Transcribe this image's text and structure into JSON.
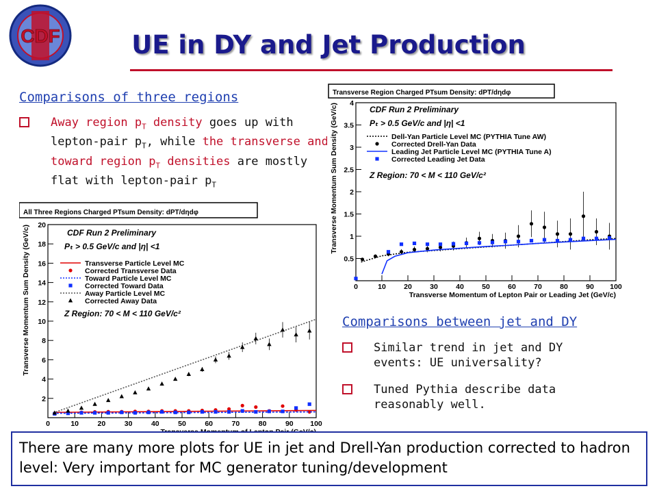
{
  "logo": {
    "text": "CDF"
  },
  "title": "UE in DY and Jet Production",
  "left_section": {
    "heading": "Comparisons of three regions",
    "bullet": {
      "p1": "Away region p",
      "sub1": "T",
      "p2": " density",
      "p3": " goes up with lepton-pair p",
      "sub2": "T",
      "p4": ", while ",
      "p5": "the transverse and toward region p",
      "sub3": "T",
      "p6": " densities",
      "p7": " are mostly flat with lepton-pair p",
      "sub4": "T"
    }
  },
  "right_section": {
    "heading": "Comparisons between jet and DY",
    "bullets": [
      "Similar trend in jet and DY events: UE universality?",
      "Tuned Pythia describe data reasonably well."
    ]
  },
  "bottom_text": "There are many more plots for UE in jet and Drell-Yan production corrected to hadron level: Very important for MC generator tuning/development",
  "colors": {
    "title": "#1a1a8c",
    "rule": "#c0102a",
    "heading": "#1f3fb0",
    "box": "#1f2fa0",
    "red": "#e00000",
    "blue": "#1030ff"
  },
  "chart_data": [
    {
      "type": "scatter",
      "title": "All Three Regions Charged PTsum Density: dPT/dηdφ",
      "xlabel": "Transverse Momentum of Lepton Pair (GeV/c)",
      "ylabel": "Transverse Momentum Sum Density (GeV/c)",
      "xlim": [
        0,
        100
      ],
      "ylim": [
        0,
        20
      ],
      "xticks": [
        "0",
        "10",
        "20",
        "30",
        "40",
        "50",
        "60",
        "70",
        "80",
        "90",
        "100"
      ],
      "yticks": [
        "2",
        "4",
        "6",
        "8",
        "10",
        "12",
        "14",
        "16",
        "18",
        "20"
      ],
      "annotations": [
        "CDF Run 2 Preliminary",
        "Pₜ > 0.5  GeV/c and |η| <1",
        "Z Region: 70 < M < 110 GeV/c²"
      ],
      "legend": [
        "Transverse Particle Level MC",
        "Corrected Transverse Data",
        "Toward Particle Level MC",
        "Corrected Toward Data",
        "Away Particle Level MC",
        "Corrected Away Data"
      ],
      "series": [
        {
          "name": "Transverse Particle Level MC",
          "kind": "line",
          "color": "#e00000",
          "x": [
            2,
            100
          ],
          "y": [
            0.55,
            0.75
          ]
        },
        {
          "name": "Corrected Transverse Data",
          "kind": "points",
          "marker": "circle",
          "color": "#e00000",
          "x": [
            2.5,
            7.5,
            12.5,
            17.5,
            22.5,
            27.5,
            32.5,
            37.5,
            42.5,
            47.5,
            52.5,
            57.5,
            62.5,
            67.5,
            72.5,
            77.5,
            82.5,
            87.5,
            92.5,
            97.5
          ],
          "y": [
            0.45,
            0.5,
            0.55,
            0.6,
            0.62,
            0.62,
            0.65,
            0.65,
            0.7,
            0.7,
            0.7,
            0.75,
            0.8,
            0.9,
            1.25,
            1.1,
            0.7,
            1.2,
            0.8,
            0.6
          ]
        },
        {
          "name": "Toward Particle Level MC",
          "kind": "line",
          "color": "#1030ff",
          "x": [
            2,
            100
          ],
          "y": [
            0.45,
            0.6
          ]
        },
        {
          "name": "Corrected Toward Data",
          "kind": "points",
          "marker": "square",
          "color": "#1030ff",
          "x": [
            2.5,
            7.5,
            12.5,
            17.5,
            22.5,
            27.5,
            32.5,
            37.5,
            42.5,
            47.5,
            52.5,
            57.5,
            62.5,
            67.5,
            72.5,
            77.5,
            82.5,
            87.5,
            92.5,
            97.5
          ],
          "y": [
            0.4,
            0.45,
            0.5,
            0.5,
            0.5,
            0.55,
            0.5,
            0.55,
            0.6,
            0.55,
            0.55,
            0.6,
            0.6,
            0.6,
            0.7,
            0.6,
            0.65,
            0.65,
            1.0,
            1.4
          ]
        },
        {
          "name": "Away Particle Level MC",
          "kind": "line",
          "color": "#555555",
          "x": [
            2,
            100
          ],
          "y": [
            0.5,
            10.2
          ]
        },
        {
          "name": "Corrected Away Data",
          "kind": "points",
          "marker": "triangle",
          "color": "#000000",
          "x": [
            2.5,
            7.5,
            12.5,
            17.5,
            22.5,
            27.5,
            32.5,
            37.5,
            42.5,
            47.5,
            52.5,
            57.5,
            62.5,
            67.5,
            72.5,
            77.5,
            82.5,
            87.5,
            92.5,
            97.5
          ],
          "y": [
            0.5,
            0.7,
            1.0,
            1.4,
            1.8,
            2.2,
            2.6,
            3.0,
            3.5,
            4.0,
            4.5,
            5.0,
            6.0,
            6.4,
            7.3,
            8.2,
            7.6,
            9.1,
            8.6,
            9.0
          ],
          "err": [
            0.05,
            0.05,
            0.08,
            0.1,
            0.1,
            0.1,
            0.1,
            0.12,
            0.15,
            0.15,
            0.2,
            0.25,
            0.35,
            0.4,
            0.5,
            0.6,
            0.6,
            0.8,
            0.8,
            0.9
          ]
        }
      ]
    },
    {
      "type": "scatter",
      "title": "Transverse Region Charged PTsum Density: dPT/dηdφ",
      "xlabel": "Transverse Momentum of Lepton Pair or Leading Jet (GeV/c)",
      "ylabel": "Transverse Momentum Sum Density (GeV/c)",
      "xlim": [
        0,
        100
      ],
      "ylim": [
        0,
        4
      ],
      "xticks": [
        "0",
        "10",
        "20",
        "30",
        "40",
        "50",
        "60",
        "70",
        "80",
        "90",
        "100"
      ],
      "yticks": [
        "0.5",
        "1",
        "1.5",
        "2",
        "2.5",
        "3",
        "3.5",
        "4"
      ],
      "annotations": [
        "CDF Run 2 Preliminary",
        "Pₜ > 0.5  GeV/c and |η| <1",
        "Z Region: 70 < M < 110 GeV/c²"
      ],
      "legend": [
        "Dell-Yan Particle Level MC (PYTHIA Tune AW)",
        "Corrected Drell-Yan Data",
        "Leading Jet Particle Level MC (PYTHIA Tune A)",
        "Corrected Leading Jet Data"
      ],
      "series": [
        {
          "name": "Dell-Yan Particle Level MC (PYTHIA Tune AW)",
          "kind": "line",
          "color": "#000000",
          "x": [
            2,
            10,
            20,
            30,
            40,
            50,
            60,
            70,
            80,
            90,
            100
          ],
          "y": [
            0.42,
            0.56,
            0.64,
            0.68,
            0.72,
            0.76,
            0.8,
            0.84,
            0.88,
            0.92,
            0.95
          ]
        },
        {
          "name": "Corrected Drell-Yan Data",
          "kind": "points",
          "marker": "circle",
          "color": "#000000",
          "x": [
            2.5,
            7.5,
            12.5,
            17.5,
            22.5,
            27.5,
            32.5,
            37.5,
            42.5,
            47.5,
            52.5,
            57.5,
            62.5,
            67.5,
            72.5,
            77.5,
            82.5,
            87.5,
            92.5,
            97.5
          ],
          "y": [
            0.48,
            0.55,
            0.6,
            0.65,
            0.7,
            0.72,
            0.75,
            0.78,
            0.85,
            0.95,
            0.9,
            0.9,
            1.0,
            1.28,
            1.2,
            1.05,
            1.05,
            1.45,
            1.1,
            1.0
          ],
          "err": [
            0.03,
            0.04,
            0.05,
            0.06,
            0.07,
            0.08,
            0.09,
            0.1,
            0.12,
            0.15,
            0.15,
            0.18,
            0.25,
            0.3,
            0.35,
            0.3,
            0.35,
            0.55,
            0.3,
            0.3
          ]
        },
        {
          "name": "Leading Jet Particle Level MC (PYTHIA Tune A)",
          "kind": "line",
          "color": "#1030ff",
          "x": [
            10,
            12,
            15,
            20,
            30,
            40,
            50,
            60,
            70,
            80,
            90,
            100
          ],
          "y": [
            0.15,
            0.45,
            0.55,
            0.63,
            0.69,
            0.73,
            0.77,
            0.8,
            0.84,
            0.87,
            0.9,
            0.93
          ]
        },
        {
          "name": "Corrected Leading Jet Data",
          "kind": "points",
          "marker": "square",
          "color": "#1030ff",
          "x": [
            0,
            12.5,
            17.5,
            22.5,
            27.5,
            32.5,
            37.5,
            42.5,
            47.5,
            52.5,
            57.5,
            62.5,
            67.5,
            72.5,
            77.5,
            82.5,
            87.5,
            92.5,
            97.5
          ],
          "y": [
            0.05,
            0.65,
            0.82,
            0.84,
            0.82,
            0.82,
            0.83,
            0.84,
            0.85,
            0.86,
            0.88,
            0.88,
            0.9,
            0.92,
            0.9,
            0.92,
            0.95,
            0.95,
            0.96
          ]
        }
      ]
    }
  ]
}
